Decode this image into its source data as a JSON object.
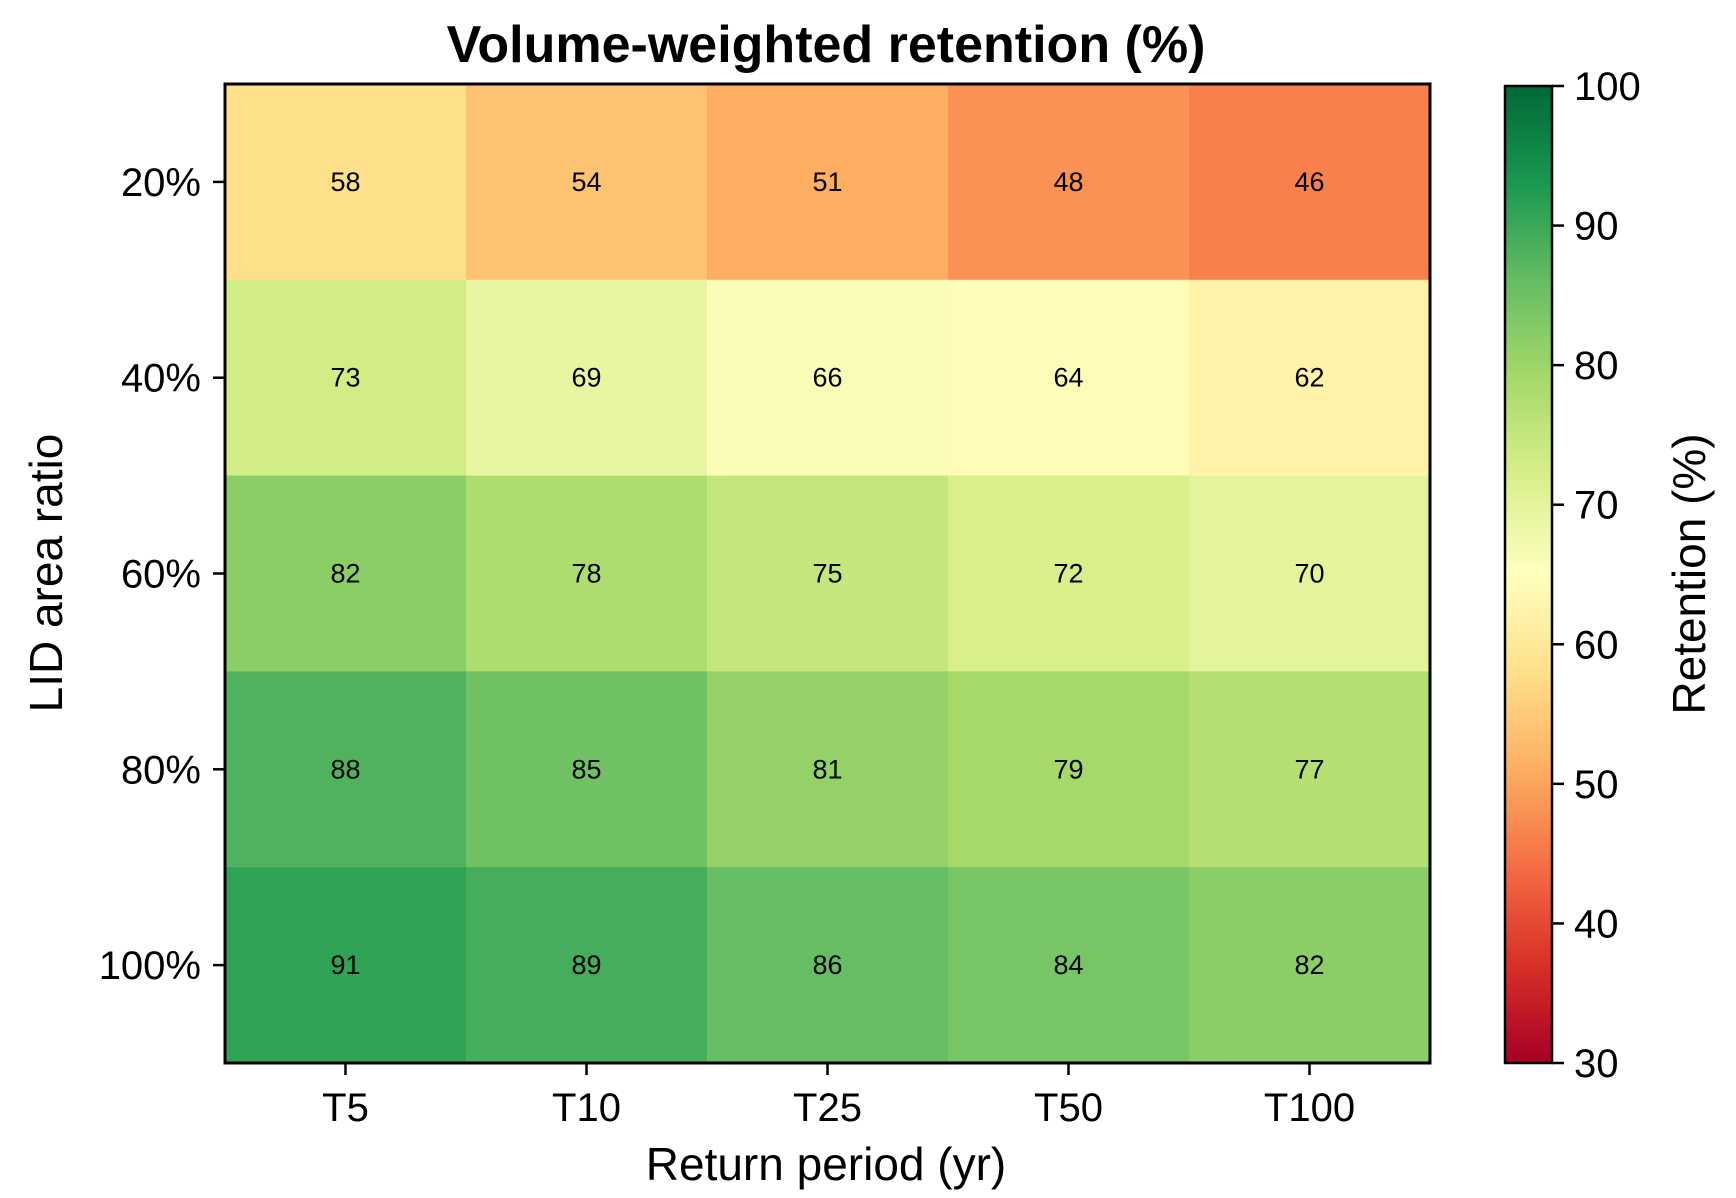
{
  "chart_data": {
    "type": "heatmap",
    "title": "Volume-weighted retention (%)",
    "xlabel": "Return period (yr)",
    "ylabel": "LID area ratio",
    "x_categories": [
      "T5",
      "T10",
      "T25",
      "T50",
      "T100"
    ],
    "y_categories": [
      "20%",
      "40%",
      "60%",
      "80%",
      "100%"
    ],
    "values": [
      [
        58,
        54,
        51,
        48,
        46
      ],
      [
        73,
        69,
        66,
        64,
        62
      ],
      [
        82,
        78,
        75,
        72,
        70
      ],
      [
        88,
        85,
        81,
        79,
        77
      ],
      [
        91,
        89,
        86,
        84,
        82
      ]
    ],
    "colorbar": {
      "label": "Retention (%)",
      "colormap": "RdYlGn",
      "min": 30,
      "max": 100,
      "ticks": [
        "30",
        "40",
        "50",
        "60",
        "70",
        "80",
        "90",
        "100"
      ]
    },
    "grid": false
  },
  "colormap_stops": [
    "#a50026",
    "#d73027",
    "#f46d43",
    "#fdae61",
    "#fee08b",
    "#ffffbf",
    "#d9ef8b",
    "#a6d96a",
    "#66bd63",
    "#1a9850",
    "#006837"
  ]
}
